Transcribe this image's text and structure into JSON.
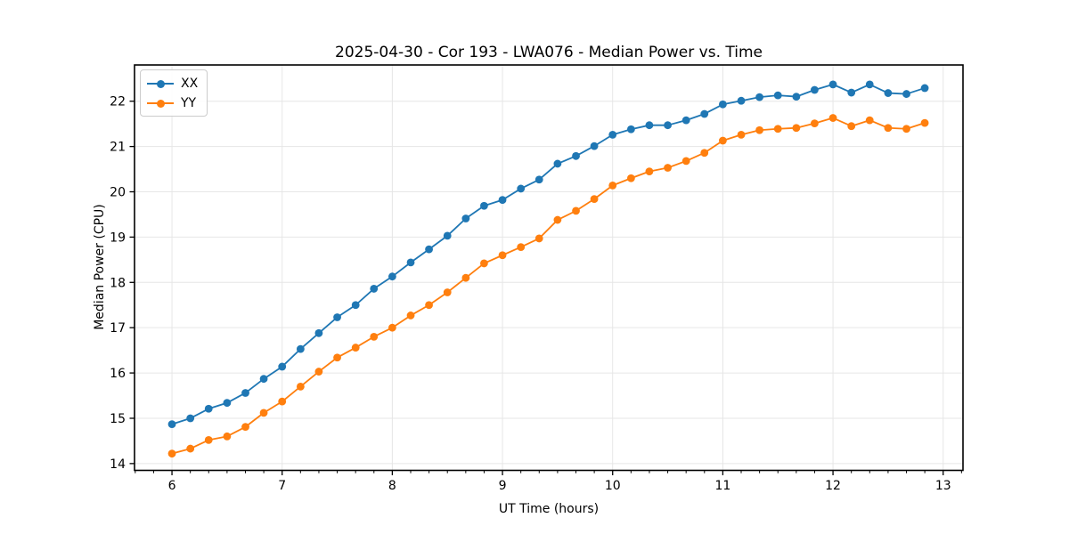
{
  "figure": {
    "background": "#ffffff"
  },
  "chart_data": {
    "type": "line",
    "title": "2025-04-30 - Cor 193 - LWA076 - Median Power vs. Time",
    "xlabel": "UT Time (hours)",
    "ylabel": "Median Power (CPU)",
    "xlim": [
      5.66,
      13.18
    ],
    "ylim": [
      13.85,
      22.8
    ],
    "xticks": [
      6,
      7,
      8,
      9,
      10,
      11,
      12,
      13
    ],
    "yticks": [
      14,
      15,
      16,
      17,
      18,
      19,
      20,
      21,
      22
    ],
    "x_minor_step": 0.1666667,
    "grid": true,
    "grid_color": "#e6e6e6",
    "legend_position": "upper-left",
    "x": [
      6.0,
      6.167,
      6.333,
      6.5,
      6.667,
      6.833,
      7.0,
      7.167,
      7.333,
      7.5,
      7.667,
      7.833,
      8.0,
      8.167,
      8.333,
      8.5,
      8.667,
      8.833,
      9.0,
      9.167,
      9.333,
      9.5,
      9.667,
      9.833,
      10.0,
      10.167,
      10.333,
      10.5,
      10.667,
      10.833,
      11.0,
      11.167,
      11.333,
      11.5,
      11.667,
      11.833,
      12.0,
      12.167,
      12.333,
      12.5,
      12.667,
      12.833
    ],
    "series": [
      {
        "name": "XX",
        "color": "#1f77b4",
        "values": [
          14.87,
          15.0,
          15.21,
          15.34,
          15.56,
          15.87,
          16.14,
          16.53,
          16.88,
          17.23,
          17.5,
          17.86,
          18.13,
          18.44,
          18.73,
          19.03,
          19.41,
          19.69,
          19.82,
          20.07,
          20.27,
          20.62,
          20.79,
          21.01,
          21.26,
          21.38,
          21.47,
          21.47,
          21.58,
          21.72,
          21.93,
          22.01,
          22.09,
          22.13,
          22.1,
          22.25,
          22.37,
          22.19,
          22.37,
          22.18,
          22.16,
          22.29
        ]
      },
      {
        "name": "YY",
        "color": "#ff7f0e",
        "values": [
          14.22,
          14.33,
          14.52,
          14.6,
          14.81,
          15.12,
          15.37,
          15.7,
          16.03,
          16.34,
          16.56,
          16.8,
          17.0,
          17.27,
          17.5,
          17.78,
          18.1,
          18.42,
          18.6,
          18.78,
          18.97,
          19.38,
          19.58,
          19.84,
          20.14,
          20.3,
          20.45,
          20.53,
          20.68,
          20.86,
          21.13,
          21.26,
          21.36,
          21.39,
          21.41,
          21.51,
          21.63,
          21.45,
          21.58,
          21.41,
          21.39,
          21.52
        ]
      }
    ]
  }
}
